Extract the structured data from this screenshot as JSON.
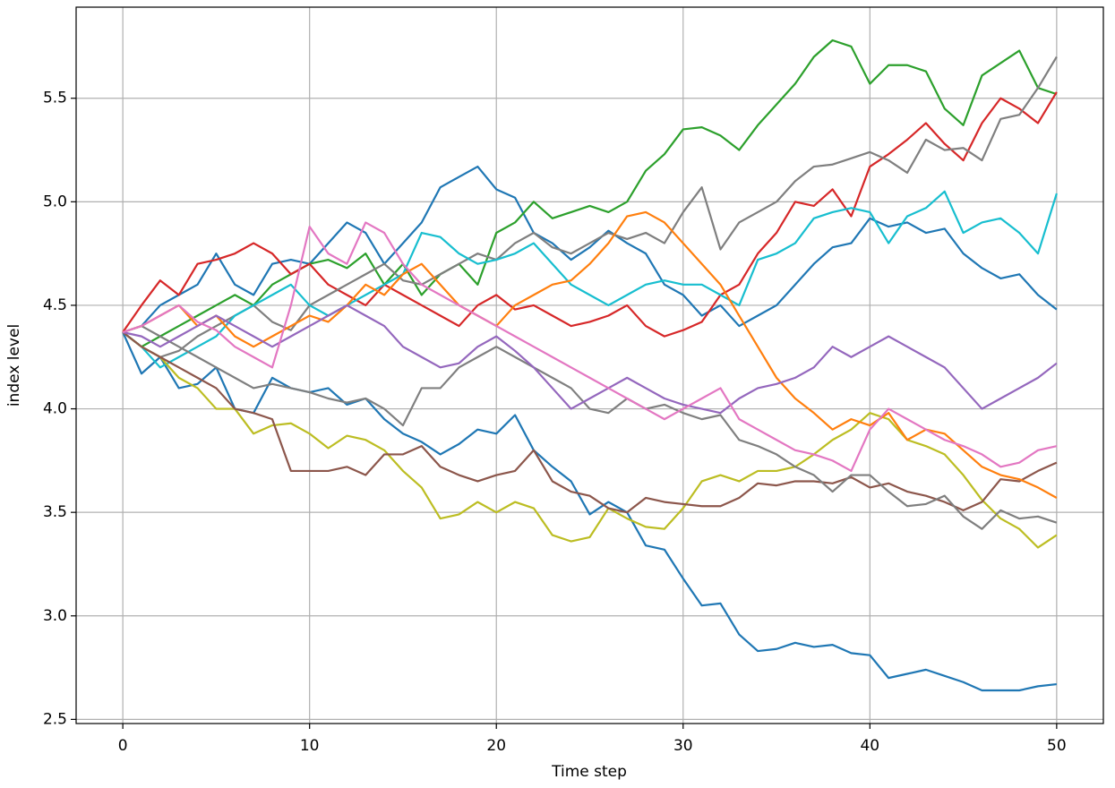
{
  "chart_data": {
    "type": "line",
    "xlabel": "Time step",
    "ylabel": "index level",
    "x": [
      0,
      1,
      2,
      3,
      4,
      5,
      6,
      7,
      8,
      9,
      10,
      11,
      12,
      13,
      14,
      15,
      16,
      17,
      18,
      19,
      20,
      21,
      22,
      23,
      24,
      25,
      26,
      27,
      28,
      29,
      30,
      31,
      32,
      33,
      34,
      35,
      36,
      37,
      38,
      39,
      40,
      41,
      42,
      43,
      44,
      45,
      46,
      47,
      48,
      49,
      50
    ],
    "xlim": [
      -2.5,
      52.5
    ],
    "xticks": [
      0,
      10,
      20,
      30,
      40,
      50
    ],
    "ylim": [
      2.48,
      5.94
    ],
    "yticks": [
      2.5,
      {
        "value": 3,
        "label": "3.0"
      },
      3.5,
      {
        "value": 4,
        "label": "4.0"
      },
      4.5,
      {
        "value": 5,
        "label": "5.0"
      },
      5.5
    ],
    "grid": true,
    "series": [
      {
        "color": "#1f77b4",
        "values": [
          4.37,
          4.17,
          4.25,
          4.1,
          4.12,
          4.2,
          4.0,
          3.98,
          4.15,
          4.1,
          4.08,
          4.1,
          4.02,
          4.05,
          3.95,
          3.88,
          3.84,
          3.78,
          3.83,
          3.9,
          3.88,
          3.97,
          3.8,
          3.72,
          3.65,
          3.49,
          3.55,
          3.5,
          3.34,
          3.32,
          3.18,
          3.05,
          3.06,
          2.91,
          2.83,
          2.84,
          2.87,
          2.85,
          2.86,
          2.82,
          2.81,
          2.7,
          2.72,
          2.74,
          2.71,
          2.68,
          2.64,
          2.64,
          2.64,
          2.66,
          2.67
        ]
      },
      {
        "color": "#1f77b4",
        "values": [
          4.37,
          4.4,
          4.5,
          4.55,
          4.6,
          4.75,
          4.6,
          4.55,
          4.7,
          4.72,
          4.7,
          4.8,
          4.9,
          4.85,
          4.7,
          4.8,
          4.9,
          5.07,
          5.12,
          5.17,
          5.06,
          5.02,
          4.85,
          4.8,
          4.72,
          4.78,
          4.86,
          4.8,
          4.75,
          4.6,
          4.55,
          4.45,
          4.5,
          4.4,
          4.45,
          4.5,
          4.6,
          4.7,
          4.78,
          4.8,
          4.92,
          4.88,
          4.9,
          4.85,
          4.87,
          4.75,
          4.68,
          4.63,
          4.65,
          4.55,
          4.48
        ]
      },
      {
        "color": "#2ca02c",
        "values": [
          4.37,
          4.3,
          4.35,
          4.4,
          4.45,
          4.5,
          4.55,
          4.5,
          4.6,
          4.65,
          4.7,
          4.72,
          4.68,
          4.75,
          4.6,
          4.7,
          4.55,
          4.65,
          4.7,
          4.6,
          4.85,
          4.9,
          5.0,
          4.92,
          4.95,
          4.98,
          4.95,
          5.0,
          5.15,
          5.23,
          5.35,
          5.36,
          5.32,
          5.25,
          5.37,
          5.47,
          5.57,
          5.7,
          5.78,
          5.75,
          5.57,
          5.66,
          5.66,
          5.63,
          5.45,
          5.37,
          5.61,
          5.67,
          5.73,
          5.55,
          5.52
        ]
      },
      {
        "color": "#d62728",
        "values": [
          4.37,
          4.5,
          4.62,
          4.55,
          4.7,
          4.72,
          4.75,
          4.8,
          4.75,
          4.65,
          4.7,
          4.6,
          4.55,
          4.5,
          4.6,
          4.55,
          4.5,
          4.45,
          4.4,
          4.5,
          4.55,
          4.48,
          4.5,
          4.45,
          4.4,
          4.42,
          4.45,
          4.5,
          4.4,
          4.35,
          4.38,
          4.42,
          4.55,
          4.6,
          4.75,
          4.85,
          5.0,
          4.98,
          5.06,
          4.93,
          5.17,
          5.23,
          5.3,
          5.38,
          5.28,
          5.2,
          5.38,
          5.5,
          5.45,
          5.38,
          5.53
        ]
      },
      {
        "color": "#7f7f7f",
        "values": [
          4.37,
          4.3,
          4.25,
          4.28,
          4.35,
          4.4,
          4.45,
          4.5,
          4.42,
          4.38,
          4.5,
          4.55,
          4.6,
          4.65,
          4.7,
          4.62,
          4.6,
          4.65,
          4.7,
          4.75,
          4.72,
          4.8,
          4.85,
          4.78,
          4.75,
          4.8,
          4.85,
          4.82,
          4.85,
          4.8,
          4.95,
          5.07,
          4.77,
          4.9,
          4.95,
          5.0,
          5.1,
          5.17,
          5.18,
          5.21,
          5.24,
          5.2,
          5.14,
          5.3,
          5.25,
          5.26,
          5.2,
          5.4,
          5.42,
          5.55,
          5.7
        ]
      },
      {
        "color": "#17becf",
        "values": [
          4.37,
          4.3,
          4.2,
          4.25,
          4.3,
          4.35,
          4.45,
          4.5,
          4.55,
          4.6,
          4.5,
          4.45,
          4.5,
          4.55,
          4.6,
          4.65,
          4.85,
          4.83,
          4.75,
          4.7,
          4.72,
          4.75,
          4.8,
          4.7,
          4.6,
          4.55,
          4.5,
          4.55,
          4.6,
          4.62,
          4.6,
          4.6,
          4.55,
          4.5,
          4.72,
          4.75,
          4.8,
          4.92,
          4.95,
          4.97,
          4.95,
          4.8,
          4.93,
          4.97,
          5.05,
          4.85,
          4.9,
          4.92,
          4.85,
          4.75,
          5.04
        ]
      },
      {
        "color": "#bcbd22",
        "values": [
          4.37,
          4.3,
          4.25,
          4.15,
          4.1,
          4.0,
          4.0,
          3.88,
          3.92,
          3.93,
          3.88,
          3.81,
          3.87,
          3.85,
          3.8,
          3.7,
          3.62,
          3.47,
          3.49,
          3.55,
          3.5,
          3.55,
          3.52,
          3.39,
          3.36,
          3.38,
          3.52,
          3.47,
          3.43,
          3.42,
          3.52,
          3.65,
          3.68,
          3.65,
          3.7,
          3.7,
          3.72,
          3.78,
          3.85,
          3.9,
          3.98,
          3.95,
          3.85,
          3.82,
          3.78,
          3.68,
          3.56,
          3.47,
          3.42,
          3.33,
          3.39
        ]
      },
      {
        "color": "#8c564b",
        "values": [
          4.37,
          4.3,
          4.25,
          4.2,
          4.15,
          4.1,
          4.0,
          3.98,
          3.95,
          3.7,
          3.7,
          3.7,
          3.72,
          3.68,
          3.78,
          3.78,
          3.82,
          3.72,
          3.68,
          3.65,
          3.68,
          3.7,
          3.8,
          3.65,
          3.6,
          3.58,
          3.52,
          3.5,
          3.57,
          3.55,
          3.54,
          3.53,
          3.53,
          3.57,
          3.64,
          3.63,
          3.65,
          3.65,
          3.64,
          3.67,
          3.62,
          3.64,
          3.6,
          3.58,
          3.55,
          3.51,
          3.55,
          3.66,
          3.65,
          3.7,
          3.74
        ]
      },
      {
        "color": "#7f7f7f",
        "values": [
          4.37,
          4.4,
          4.35,
          4.3,
          4.25,
          4.2,
          4.15,
          4.1,
          4.12,
          4.1,
          4.08,
          4.05,
          4.03,
          4.05,
          4.0,
          3.92,
          4.1,
          4.1,
          4.2,
          4.25,
          4.3,
          4.25,
          4.2,
          4.15,
          4.1,
          4.0,
          3.98,
          4.05,
          4.0,
          4.02,
          3.98,
          3.95,
          3.97,
          3.85,
          3.82,
          3.78,
          3.72,
          3.68,
          3.6,
          3.68,
          3.68,
          3.6,
          3.53,
          3.54,
          3.58,
          3.48,
          3.42,
          3.51,
          3.47,
          3.48,
          3.45
        ]
      },
      {
        "color": "#ff7f0e",
        "values": [
          4.37,
          4.4,
          4.45,
          4.5,
          4.4,
          4.45,
          4.35,
          4.3,
          4.35,
          4.4,
          4.45,
          4.42,
          4.5,
          4.6,
          4.55,
          4.65,
          4.7,
          4.6,
          4.5,
          4.45,
          4.4,
          4.5,
          4.55,
          4.6,
          4.62,
          4.7,
          4.8,
          4.93,
          4.95,
          4.9,
          4.8,
          4.7,
          4.6,
          4.45,
          4.3,
          4.15,
          4.05,
          3.98,
          3.9,
          3.95,
          3.92,
          3.98,
          3.85,
          3.9,
          3.88,
          3.8,
          3.72,
          3.68,
          3.66,
          3.62,
          3.57
        ]
      },
      {
        "color": "#9467bd",
        "values": [
          4.37,
          4.35,
          4.3,
          4.35,
          4.4,
          4.45,
          4.4,
          4.35,
          4.3,
          4.35,
          4.4,
          4.45,
          4.5,
          4.45,
          4.4,
          4.3,
          4.25,
          4.2,
          4.22,
          4.3,
          4.35,
          4.28,
          4.2,
          4.1,
          4.0,
          4.05,
          4.1,
          4.15,
          4.1,
          4.05,
          4.02,
          4.0,
          3.98,
          4.05,
          4.1,
          4.12,
          4.15,
          4.2,
          4.3,
          4.25,
          4.3,
          4.35,
          4.3,
          4.25,
          4.2,
          4.1,
          4.0,
          4.05,
          4.1,
          4.15,
          4.22
        ]
      },
      {
        "color": "#e377c2",
        "values": [
          4.37,
          4.4,
          4.45,
          4.5,
          4.42,
          4.38,
          4.3,
          4.25,
          4.2,
          4.5,
          4.88,
          4.75,
          4.7,
          4.9,
          4.85,
          4.7,
          4.6,
          4.55,
          4.5,
          4.45,
          4.4,
          4.35,
          4.3,
          4.25,
          4.2,
          4.15,
          4.1,
          4.05,
          4.0,
          3.95,
          4.0,
          4.05,
          4.1,
          3.95,
          3.9,
          3.85,
          3.8,
          3.78,
          3.75,
          3.7,
          3.9,
          4.0,
          3.95,
          3.9,
          3.85,
          3.82,
          3.78,
          3.72,
          3.74,
          3.8,
          3.82
        ]
      }
    ]
  }
}
